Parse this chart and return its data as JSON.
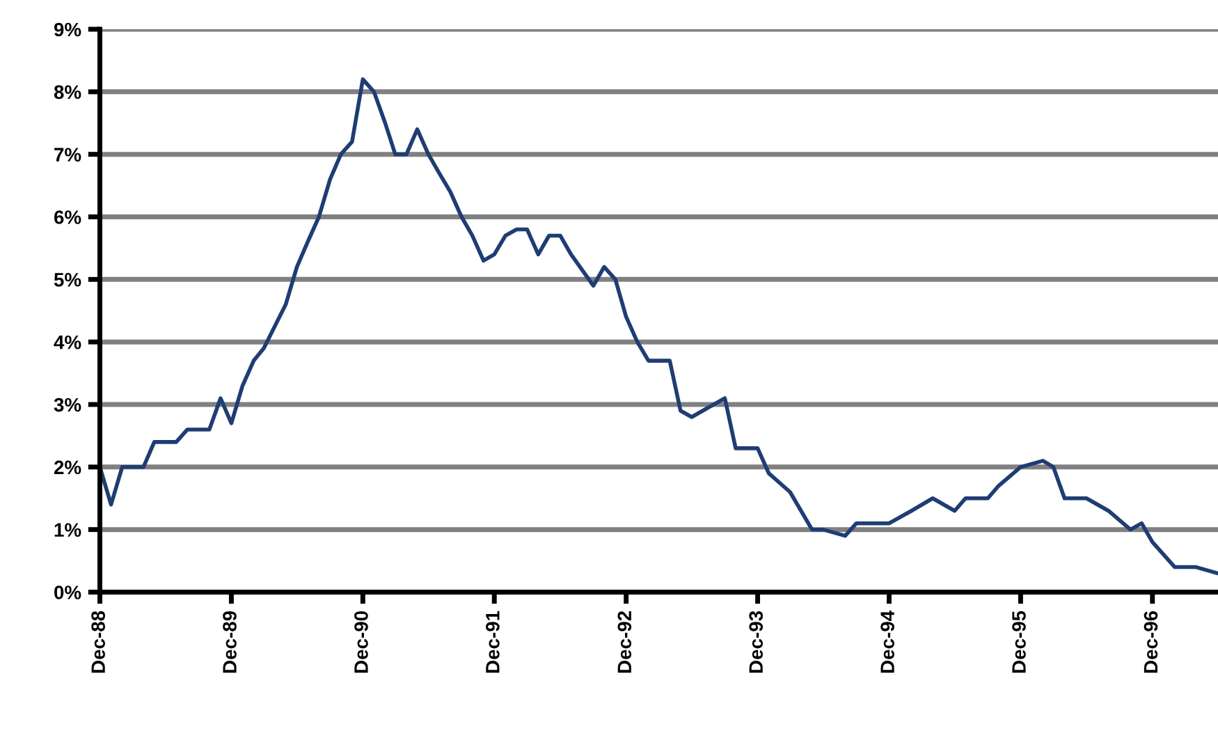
{
  "chart_data": {
    "type": "line",
    "color": "#1f3d73",
    "grid": "y",
    "marker": "none",
    "line_style": "solid",
    "x": [
      "1988-12",
      "1989-01",
      "1989-02",
      "1989-04",
      "1989-05",
      "1989-07",
      "1989-08",
      "1989-10",
      "1989-11",
      "1989-12",
      "1990-01",
      "1990-02",
      "1990-03",
      "1990-05",
      "1990-06",
      "1990-07",
      "1990-08",
      "1990-09",
      "1990-10",
      "1990-11",
      "1990-12",
      "1991-01",
      "1991-02",
      "1991-03",
      "1991-04",
      "1991-05",
      "1991-06",
      "1991-07",
      "1991-08",
      "1991-09",
      "1991-10",
      "1991-11",
      "1991-12",
      "1992-01",
      "1992-02",
      "1992-03",
      "1992-04",
      "1992-05",
      "1992-06",
      "1992-07",
      "1992-09",
      "1992-10",
      "1992-11",
      "1992-12",
      "1993-01",
      "1993-02",
      "1993-04",
      "1993-05",
      "1993-06",
      "1993-09",
      "1993-10",
      "1993-12",
      "1994-01",
      "1994-03",
      "1994-05",
      "1994-06",
      "1994-08",
      "1994-09",
      "1994-12",
      "1995-02",
      "1995-04",
      "1995-06",
      "1995-07",
      "1995-09",
      "1995-10",
      "1995-12",
      "1996-02",
      "1996-03",
      "1996-04",
      "1996-06",
      "1996-08",
      "1996-10",
      "1996-11",
      "1996-12",
      "1997-02",
      "1997-04",
      "1997-06"
    ],
    "values": [
      2.0,
      1.4,
      2.0,
      2.0,
      2.4,
      2.4,
      2.6,
      2.6,
      3.1,
      2.7,
      3.3,
      3.7,
      3.9,
      4.6,
      5.2,
      5.6,
      6.0,
      6.6,
      7.0,
      7.2,
      8.2,
      8.0,
      7.5,
      7.0,
      7.0,
      7.4,
      7.0,
      6.7,
      6.4,
      6.0,
      5.7,
      5.3,
      5.4,
      5.7,
      5.8,
      5.8,
      5.4,
      5.7,
      5.7,
      5.4,
      4.9,
      5.2,
      5.0,
      4.4,
      4.0,
      3.7,
      3.7,
      2.9,
      2.8,
      3.1,
      2.3,
      2.3,
      1.9,
      1.6,
      1.0,
      1.0,
      0.9,
      1.1,
      1.1,
      1.3,
      1.5,
      1.3,
      1.5,
      1.5,
      1.7,
      2.0,
      2.1,
      2.0,
      1.5,
      1.5,
      1.3,
      1.0,
      1.1,
      0.8,
      0.4,
      0.4,
      0.3
    ],
    "xlim": [
      "1988-12",
      "1997-06"
    ],
    "xticks": [
      {
        "value": "1988-12",
        "label": "Dec-88"
      },
      {
        "value": "1989-12",
        "label": "Dec-89"
      },
      {
        "value": "1990-12",
        "label": "Dec-90"
      },
      {
        "value": "1991-12",
        "label": "Dec-91"
      },
      {
        "value": "1992-12",
        "label": "Dec-92"
      },
      {
        "value": "1993-12",
        "label": "Dec-93"
      },
      {
        "value": "1994-12",
        "label": "Dec-94"
      },
      {
        "value": "1995-12",
        "label": "Dec-95"
      },
      {
        "value": "1996-12",
        "label": "Dec-96"
      }
    ],
    "ylim": [
      0,
      9
    ],
    "yticks": [
      {
        "value": 0,
        "label": "0%"
      },
      {
        "value": 1,
        "label": "1%"
      },
      {
        "value": 2,
        "label": "2%"
      },
      {
        "value": 3,
        "label": "3%"
      },
      {
        "value": 4,
        "label": "4%"
      },
      {
        "value": 5,
        "label": "5%"
      },
      {
        "value": 6,
        "label": "6%"
      },
      {
        "value": 7,
        "label": "7%"
      },
      {
        "value": 8,
        "label": "8%"
      },
      {
        "value": 9,
        "label": "9%"
      }
    ]
  }
}
